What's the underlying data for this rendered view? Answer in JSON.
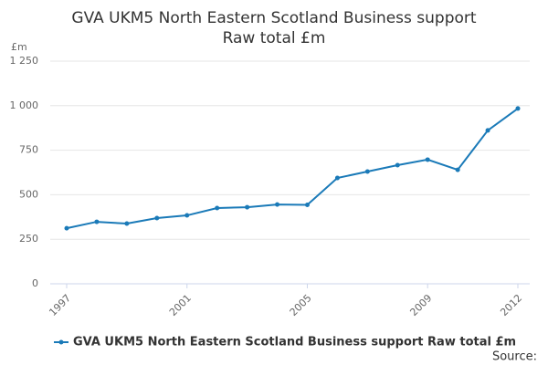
{
  "chart_data": {
    "type": "line",
    "title": "GVA UKM5 North Eastern Scotland Business support Raw total £m",
    "y_label": "£m",
    "x": [
      1997,
      1998,
      1999,
      2000,
      2001,
      2002,
      2003,
      2004,
      2005,
      2006,
      2007,
      2008,
      2009,
      2010,
      2011,
      2012
    ],
    "series": [
      {
        "name": "GVA UKM5 North Eastern Scotland Business support Raw total £m",
        "color": "#1a7ab8",
        "values": [
          312,
          348,
          338,
          369,
          384,
          425,
          430,
          445,
          443,
          594,
          630,
          666,
          697,
          640,
          861,
          984
        ]
      }
    ],
    "xlim": [
      1997,
      2012
    ],
    "xticks": [
      1997,
      2001,
      2005,
      2009,
      2012
    ],
    "ylim": [
      0,
      1250
    ],
    "yticks": [
      0,
      250,
      500,
      750,
      {
        "value": 1000,
        "label": "1 000"
      },
      {
        "value": 1250,
        "label": "1 250"
      }
    ],
    "grid": true,
    "source": "Source:"
  }
}
